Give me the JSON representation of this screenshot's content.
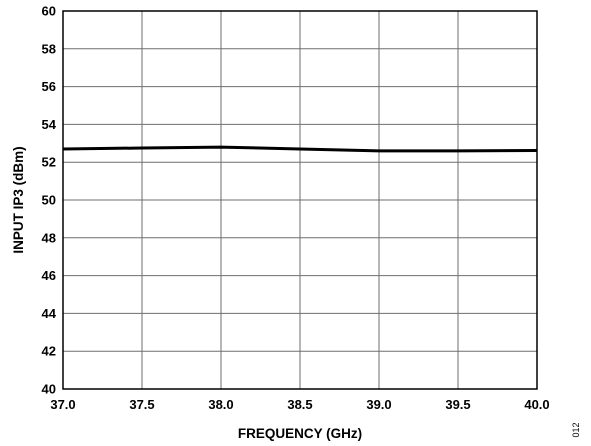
{
  "chart_data": {
    "type": "line",
    "title": "",
    "xlabel": "FREQUENCY (GHz)",
    "ylabel": "INPUT IP3 (dBm)",
    "xlim": [
      37.0,
      40.0
    ],
    "ylim": [
      40,
      60
    ],
    "xticks": [
      "37.0",
      "37.5",
      "38.0",
      "38.5",
      "39.0",
      "39.5",
      "40.0"
    ],
    "yticks": [
      "40",
      "42",
      "44",
      "46",
      "48",
      "50",
      "52",
      "54",
      "56",
      "58",
      "60"
    ],
    "grid": true,
    "line_color": "#000000",
    "series": [
      {
        "x": [
          37.0,
          37.5,
          38.0,
          38.5,
          39.0,
          39.5,
          40.0
        ],
        "y": [
          52.7,
          52.75,
          52.8,
          52.7,
          52.6,
          52.6,
          52.62
        ]
      }
    ],
    "figure_id": "012"
  }
}
